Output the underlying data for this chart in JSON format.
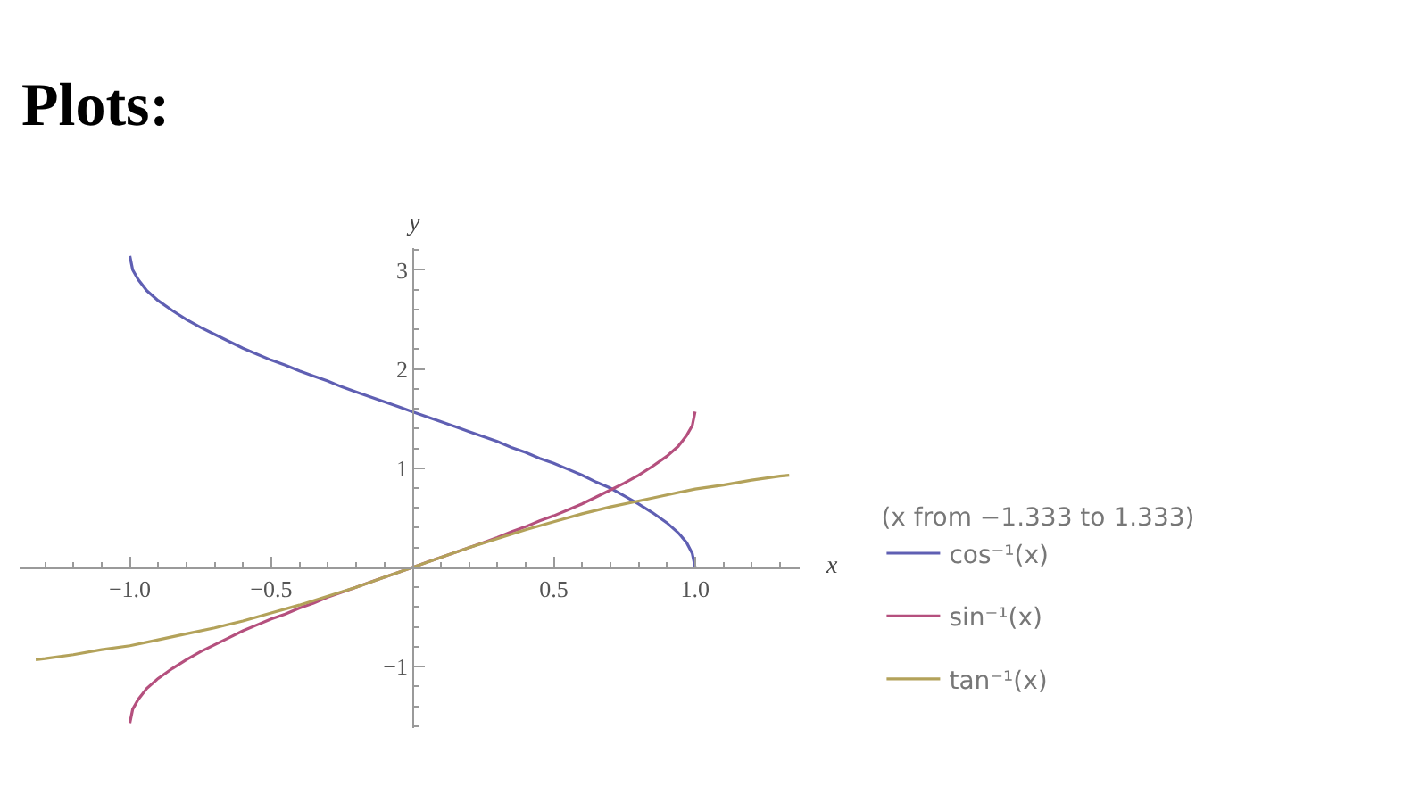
{
  "chart_data": {
    "type": "line",
    "title": "Plots:",
    "xlabel": "x",
    "ylabel": "y",
    "legend_title": "(x from −1.333 to 1.333)",
    "legend": "right",
    "line_style": "solid",
    "xlim": [
      -1.39,
      1.37
    ],
    "ylim": [
      -1.62,
      3.22
    ],
    "xticks": [
      {
        "value": -1.0,
        "label": "−1.0"
      },
      {
        "value": -0.5,
        "label": "−0.5"
      },
      {
        "value": 0.5,
        "label": "0.5"
      },
      {
        "value": 1.0,
        "label": "1.0"
      },
      {
        "value": -1.3,
        "label": null
      },
      {
        "value": -1.2,
        "label": null
      },
      {
        "value": -1.1,
        "label": null
      },
      {
        "value": -0.9,
        "label": null
      },
      {
        "value": -0.8,
        "label": null
      },
      {
        "value": -0.7,
        "label": null
      },
      {
        "value": -0.6,
        "label": null
      },
      {
        "value": -0.4,
        "label": null
      },
      {
        "value": -0.3,
        "label": null
      },
      {
        "value": -0.2,
        "label": null
      },
      {
        "value": -0.1,
        "label": null
      },
      {
        "value": 0.1,
        "label": null
      },
      {
        "value": 0.2,
        "label": null
      },
      {
        "value": 0.3,
        "label": null
      },
      {
        "value": 0.4,
        "label": null
      },
      {
        "value": 0.6,
        "label": null
      },
      {
        "value": 0.7,
        "label": null
      },
      {
        "value": 0.8,
        "label": null
      },
      {
        "value": 0.9,
        "label": null
      },
      {
        "value": 1.1,
        "label": null
      },
      {
        "value": 1.2,
        "label": null
      },
      {
        "value": 1.3,
        "label": null
      }
    ],
    "yticks": [
      {
        "value": -1,
        "label": "−1"
      },
      1,
      2,
      3,
      {
        "value": -1.6,
        "label": null
      },
      {
        "value": -1.4,
        "label": null
      },
      {
        "value": -1.2,
        "label": null
      },
      {
        "value": -0.8,
        "label": null
      },
      {
        "value": -0.6,
        "label": null
      },
      {
        "value": -0.4,
        "label": null
      },
      {
        "value": -0.2,
        "label": null
      },
      {
        "value": 0.2,
        "label": null
      },
      {
        "value": 0.4,
        "label": null
      },
      {
        "value": 0.6,
        "label": null
      },
      {
        "value": 0.8,
        "label": null
      },
      {
        "value": 1.2,
        "label": null
      },
      {
        "value": 1.4,
        "label": null
      },
      {
        "value": 1.6,
        "label": null
      },
      {
        "value": 1.8,
        "label": null
      },
      {
        "value": 2.2,
        "label": null
      },
      {
        "value": 2.4,
        "label": null
      },
      {
        "value": 2.6,
        "label": null
      },
      {
        "value": 2.8,
        "label": null
      },
      {
        "value": 3.2,
        "label": null
      }
    ],
    "x": [
      -1,
      -0.99,
      -0.97,
      -0.94,
      -0.9,
      -0.85,
      -0.8,
      -0.75,
      -0.7,
      -0.65,
      -0.6,
      -0.55,
      -0.5,
      -0.45,
      -0.4,
      -0.35,
      -0.3,
      -0.25,
      -0.2,
      -0.15,
      -0.1,
      -0.05,
      0,
      0.05,
      0.1,
      0.15,
      0.2,
      0.25,
      0.3,
      0.35,
      0.4,
      0.45,
      0.5,
      0.55,
      0.6,
      0.65,
      0.7,
      0.75,
      0.8,
      0.85,
      0.9,
      0.94,
      0.97,
      0.99,
      1
    ],
    "series": [
      {
        "name": "cos⁻¹(x)",
        "color": "#5f5fb3",
        "values": [
          3.14,
          3.0,
          2.9,
          2.79,
          2.69,
          2.59,
          2.5,
          2.42,
          2.35,
          2.28,
          2.21,
          2.15,
          2.09,
          2.04,
          1.98,
          1.93,
          1.88,
          1.82,
          1.77,
          1.72,
          1.67,
          1.62,
          1.57,
          1.52,
          1.47,
          1.42,
          1.37,
          1.32,
          1.27,
          1.21,
          1.16,
          1.1,
          1.05,
          0.99,
          0.93,
          0.86,
          0.8,
          0.72,
          0.64,
          0.55,
          0.45,
          0.35,
          0.25,
          0.14,
          0
        ]
      },
      {
        "name": "sin⁻¹(x)",
        "color": "#b5507e",
        "values": [
          -1.57,
          -1.43,
          -1.33,
          -1.22,
          -1.12,
          -1.02,
          -0.93,
          -0.85,
          -0.78,
          -0.71,
          -0.64,
          -0.58,
          -0.52,
          -0.47,
          -0.41,
          -0.36,
          -0.3,
          -0.25,
          -0.2,
          -0.15,
          -0.1,
          -0.05,
          0,
          0.05,
          0.1,
          0.15,
          0.2,
          0.25,
          0.3,
          0.36,
          0.41,
          0.47,
          0.52,
          0.58,
          0.64,
          0.71,
          0.78,
          0.85,
          0.93,
          1.02,
          1.12,
          1.22,
          1.33,
          1.43,
          1.57
        ]
      },
      {
        "name": "tan⁻¹(x)",
        "color": "#b3a25a",
        "x": [
          -1.333,
          -1.3,
          -1.2,
          -1.1,
          -1.0,
          -0.9,
          -0.8,
          -0.7,
          -0.6,
          -0.5,
          -0.4,
          -0.3,
          -0.2,
          -0.1,
          0,
          0.1,
          0.2,
          0.3,
          0.4,
          0.5,
          0.6,
          0.7,
          0.8,
          0.9,
          1.0,
          1.1,
          1.2,
          1.3,
          1.333
        ],
        "values": [
          -0.93,
          -0.92,
          -0.88,
          -0.83,
          -0.79,
          -0.73,
          -0.67,
          -0.61,
          -0.54,
          -0.46,
          -0.38,
          -0.29,
          -0.2,
          -0.1,
          0,
          0.1,
          0.2,
          0.29,
          0.38,
          0.46,
          0.54,
          0.61,
          0.67,
          0.73,
          0.79,
          0.83,
          0.88,
          0.92,
          0.93
        ]
      }
    ]
  }
}
